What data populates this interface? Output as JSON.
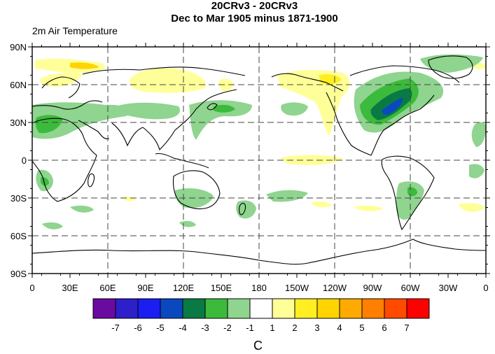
{
  "title_line1": "20CRv3 - 20CRv3",
  "title_line2": "Dec to Mar 1905 minus 1871-1900",
  "subtitle": "2m Air Temperature",
  "y_tick_labels": [
    "90N",
    "60N",
    "30N",
    "0",
    "30S",
    "60S",
    "90S"
  ],
  "x_tick_labels": [
    "0",
    "30E",
    "60E",
    "90E",
    "120E",
    "150E",
    "180",
    "150W",
    "120W",
    "90W",
    "60W",
    "30W",
    "0"
  ],
  "colorbar": {
    "colors": [
      "#6a0a9e",
      "#2d1fc9",
      "#1a1ef0",
      "#0a48c0",
      "#0a7a44",
      "#3cba3c",
      "#8fd48f",
      "#ffffff",
      "#ffff99",
      "#ffee22",
      "#ffd400",
      "#ffaa00",
      "#ff7f00",
      "#ff4a00",
      "#ff0000"
    ],
    "labels": [
      "-7",
      "-6",
      "-5",
      "-4",
      "-3",
      "-2",
      "-1",
      "1",
      "2",
      "3",
      "4",
      "5",
      "6",
      "7"
    ]
  },
  "unit_label": "C"
}
